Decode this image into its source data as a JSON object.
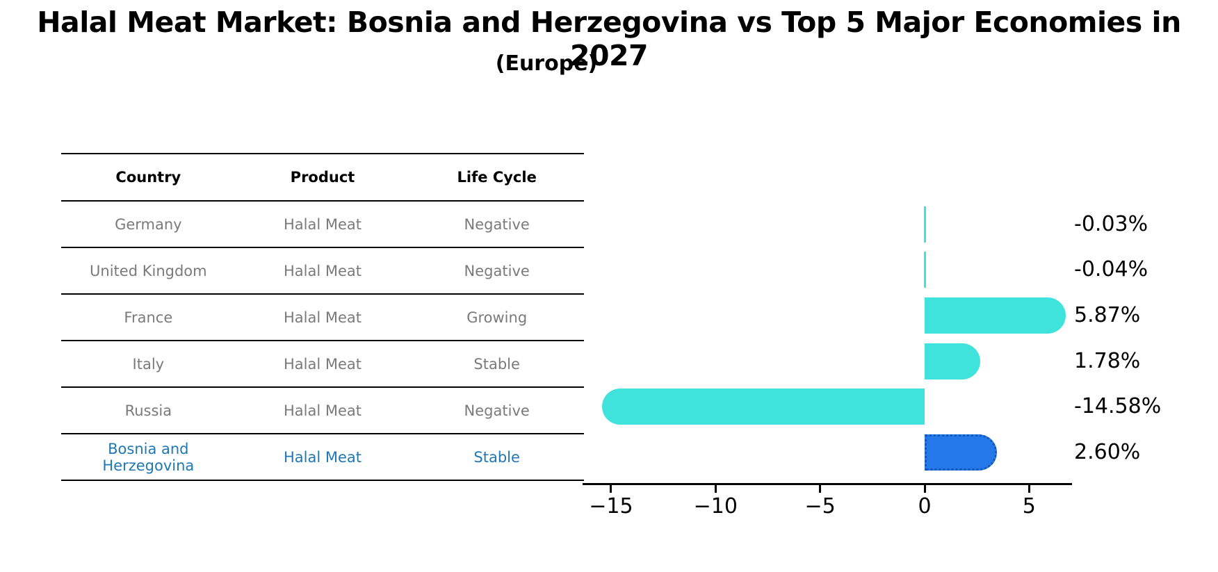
{
  "title": "Halal Meat Market: Bosnia and Herzegovina vs Top 5 Major Economies in 2027",
  "subtitle": "(Europe)",
  "table": {
    "headers": [
      "Country",
      "Product",
      "Life Cycle"
    ],
    "rows": [
      {
        "country": "Germany",
        "product": "Halal Meat",
        "life_cycle": "Negative"
      },
      {
        "country": "United Kingdom",
        "product": "Halal Meat",
        "life_cycle": "Negative"
      },
      {
        "country": "France",
        "product": "Halal Meat",
        "life_cycle": "Growing"
      },
      {
        "country": "Italy",
        "product": "Halal Meat",
        "life_cycle": "Stable"
      },
      {
        "country": "Russia",
        "product": "Halal Meat",
        "life_cycle": "Negative"
      },
      {
        "country": "Bosnia and Herzegovina",
        "product": "Halal Meat",
        "life_cycle": "Stable"
      }
    ]
  },
  "chart_data": {
    "type": "bar",
    "orientation": "horizontal",
    "categories": [
      "Germany",
      "United Kingdom",
      "France",
      "Italy",
      "Russia",
      "Bosnia and Herzegovina"
    ],
    "values": [
      -0.03,
      -0.04,
      5.87,
      1.78,
      -14.58,
      2.6
    ],
    "value_labels": [
      "-0.03%",
      "-0.04%",
      "5.87%",
      "1.78%",
      "-14.58%",
      "2.60%"
    ],
    "xticks": [
      -15,
      -10,
      -5,
      0,
      5
    ],
    "xtick_labels": [
      "−15",
      "−10",
      "−5",
      "0",
      "5"
    ],
    "xlim": [
      -15.8,
      7.0
    ],
    "grid": false,
    "legend": "none",
    "bar_color": "#40e3db",
    "highlight_color": "#2478e8",
    "highlight_index": 5
  }
}
